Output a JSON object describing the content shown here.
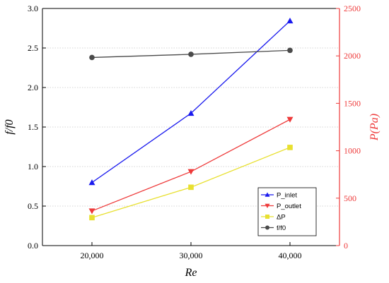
{
  "chart_data": {
    "type": "line",
    "x": [
      20000,
      30000,
      40000
    ],
    "x_tick_labels": [
      "20,000",
      "30,000",
      "40,000"
    ],
    "xlabel": "Re",
    "xlim": [
      15000,
      45000
    ],
    "ylabel_left": "f/f0",
    "ylim_left": [
      0,
      3.0
    ],
    "y_ticks_left": [
      "0.0",
      "0.5",
      "1.0",
      "1.5",
      "2.0",
      "2.5",
      "3.0"
    ],
    "ylabel_right": "P(Pa)",
    "ylim_right": [
      0,
      2500
    ],
    "y_ticks_right": [
      "0",
      "500",
      "1000",
      "1500",
      "2000",
      "2500"
    ],
    "grid": "horizontal dotted",
    "legend_position": "bottom-right",
    "series": [
      {
        "name": "P_inlet",
        "axis": "right",
        "marker": "triangle-up",
        "color": "#1a1aee",
        "values": [
          665,
          1395,
          2370
        ]
      },
      {
        "name": "P_outlet",
        "axis": "right",
        "marker": "triangle-down",
        "color": "#ee3a3a",
        "values": [
          365,
          780,
          1330
        ]
      },
      {
        "name": "ΔP",
        "axis": "right",
        "marker": "square",
        "color": "#e8e030",
        "values": [
          295,
          615,
          1035
        ]
      },
      {
        "name": "f/f0",
        "axis": "left",
        "marker": "circle",
        "color": "#4a4a4a",
        "values": [
          2.38,
          2.42,
          2.47
        ]
      }
    ]
  }
}
